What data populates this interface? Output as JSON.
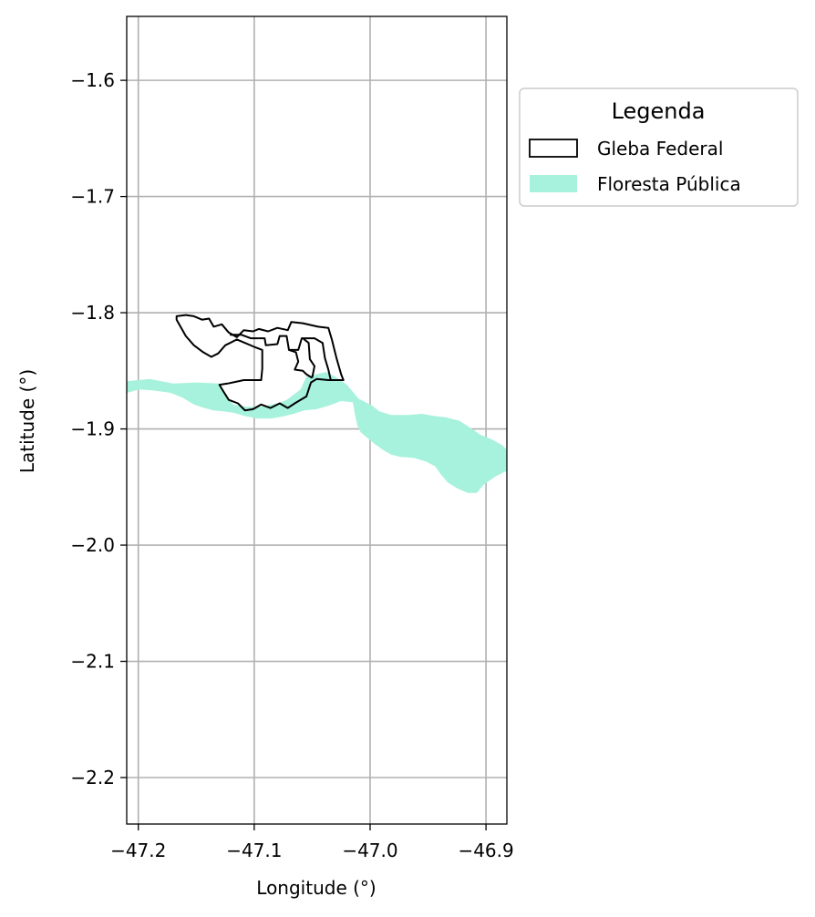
{
  "chart_data": {
    "type": "map",
    "title": "",
    "xlabel": "Longitude (°)",
    "ylabel": "Latitude (°)",
    "xlim": [
      -47.21,
      -46.882
    ],
    "ylim": [
      -2.24,
      -1.545
    ],
    "x_ticks": [
      -47.2,
      -47.1,
      -47.0,
      -46.9
    ],
    "x_tick_labels": [
      "−47.2",
      "−47.1",
      "−47.0",
      "−46.9"
    ],
    "y_ticks": [
      -1.6,
      -1.7,
      -1.8,
      -1.9,
      -2.0,
      -2.1,
      -2.2
    ],
    "y_tick_labels": [
      "−1.6",
      "−1.7",
      "−1.8",
      "−1.9",
      "−2.0",
      "−2.1",
      "−2.2"
    ],
    "grid": true,
    "legend": {
      "title": "Legenda",
      "placement": "outside-right-top",
      "entries": [
        {
          "label": "Gleba Federal",
          "style": "outline",
          "color": "#000000"
        },
        {
          "label": "Floresta Pública",
          "style": "fill",
          "color": "#a6f2dc"
        }
      ]
    },
    "colors": {
      "gleba_outline": "#000000",
      "floresta_fill": "#a6f2dc",
      "grid": "#b0b0b0"
    },
    "series": [
      {
        "name": "Gleba Federal",
        "geometry": "polygon",
        "coordinates": [
          [
            -47.167,
            -1.803
          ],
          [
            -47.159,
            -1.802
          ],
          [
            -47.152,
            -1.803
          ],
          [
            -47.145,
            -1.806
          ],
          [
            -47.139,
            -1.805
          ],
          [
            -47.135,
            -1.812
          ],
          [
            -47.128,
            -1.81
          ],
          [
            -47.122,
            -1.817
          ],
          [
            -47.115,
            -1.821
          ],
          [
            -47.109,
            -1.815
          ],
          [
            -47.101,
            -1.816
          ],
          [
            -47.096,
            -1.814
          ],
          [
            -47.088,
            -1.816
          ],
          [
            -47.08,
            -1.813
          ],
          [
            -47.071,
            -1.815
          ],
          [
            -47.068,
            -1.808
          ],
          [
            -47.058,
            -1.809
          ],
          [
            -47.045,
            -1.812
          ],
          [
            -47.036,
            -1.813
          ],
          [
            -47.033,
            -1.823
          ],
          [
            -47.029,
            -1.839
          ],
          [
            -47.025,
            -1.853
          ],
          [
            -47.023,
            -1.858
          ],
          [
            -47.029,
            -1.858
          ],
          [
            -47.036,
            -1.858
          ],
          [
            -47.046,
            -1.857
          ],
          [
            -47.051,
            -1.86
          ],
          [
            -47.055,
            -1.872
          ],
          [
            -47.065,
            -1.878
          ],
          [
            -47.071,
            -1.882
          ],
          [
            -47.078,
            -1.878
          ],
          [
            -47.086,
            -1.882
          ],
          [
            -47.094,
            -1.879
          ],
          [
            -47.101,
            -1.883
          ],
          [
            -47.108,
            -1.884
          ],
          [
            -47.114,
            -1.878
          ],
          [
            -47.122,
            -1.875
          ],
          [
            -47.127,
            -1.867
          ],
          [
            -47.13,
            -1.862
          ],
          [
            -47.123,
            -1.861
          ],
          [
            -47.109,
            -1.858
          ],
          [
            -47.094,
            -1.858
          ],
          [
            -47.093,
            -1.848
          ],
          [
            -47.093,
            -1.832
          ],
          [
            -47.101,
            -1.829
          ],
          [
            -47.108,
            -1.826
          ],
          [
            -47.115,
            -1.823
          ],
          [
            -47.125,
            -1.828
          ],
          [
            -47.131,
            -1.835
          ],
          [
            -47.137,
            -1.838
          ],
          [
            -47.144,
            -1.834
          ],
          [
            -47.152,
            -1.828
          ],
          [
            -47.159,
            -1.82
          ],
          [
            -47.163,
            -1.813
          ],
          [
            -47.167,
            -1.806
          ]
        ]
      },
      {
        "name": "Gleba Federal (inner boundaries)",
        "geometry": "multilinestring",
        "coordinates": [
          [
            [
              -47.121,
              -1.819
            ],
            [
              -47.111,
              -1.819
            ],
            [
              -47.103,
              -1.822
            ],
            [
              -47.096,
              -1.822
            ]
          ],
          [
            [
              -47.096,
              -1.822
            ],
            [
              -47.091,
              -1.822
            ],
            [
              -47.09,
              -1.828
            ],
            [
              -47.08,
              -1.827
            ],
            [
              -47.078,
              -1.82
            ],
            [
              -47.072,
              -1.82
            ],
            [
              -47.07,
              -1.832
            ],
            [
              -47.062,
              -1.832
            ],
            [
              -47.059,
              -1.822
            ],
            [
              -47.048,
              -1.822
            ],
            [
              -47.041,
              -1.826
            ],
            [
              -47.039,
              -1.839
            ],
            [
              -47.036,
              -1.849
            ],
            [
              -47.034,
              -1.858
            ]
          ],
          [
            [
              -47.07,
              -1.832
            ],
            [
              -47.064,
              -1.834
            ],
            [
              -47.062,
              -1.842
            ],
            [
              -47.065,
              -1.849
            ],
            [
              -47.058,
              -1.85
            ],
            [
              -47.055,
              -1.853
            ],
            [
              -47.05,
              -1.856
            ]
          ],
          [
            [
              -47.058,
              -1.822
            ],
            [
              -47.053,
              -1.826
            ],
            [
              -47.052,
              -1.84
            ],
            [
              -47.048,
              -1.846
            ],
            [
              -47.05,
              -1.856
            ]
          ]
        ]
      },
      {
        "name": "Floresta Pública",
        "geometry": "multipolygon",
        "coordinates": [
          [
            [
              -47.21,
              -1.859
            ],
            [
              -47.19,
              -1.857
            ],
            [
              -47.17,
              -1.861
            ],
            [
              -47.15,
              -1.86
            ],
            [
              -47.13,
              -1.861
            ],
            [
              -47.123,
              -1.873
            ],
            [
              -47.118,
              -1.879
            ],
            [
              -47.106,
              -1.881
            ],
            [
              -47.094,
              -1.881
            ],
            [
              -47.08,
              -1.878
            ],
            [
              -47.072,
              -1.875
            ],
            [
              -47.06,
              -1.866
            ],
            [
              -47.055,
              -1.855
            ],
            [
              -47.038,
              -1.851
            ],
            [
              -47.03,
              -1.855
            ],
            [
              -47.02,
              -1.862
            ],
            [
              -47.01,
              -1.874
            ],
            [
              -46.998,
              -1.88
            ],
            [
              -46.992,
              -1.885
            ],
            [
              -46.982,
              -1.888
            ],
            [
              -46.967,
              -1.888
            ],
            [
              -46.955,
              -1.887
            ],
            [
              -46.944,
              -1.889
            ],
            [
              -46.935,
              -1.89
            ],
            [
              -46.923,
              -1.893
            ],
            [
              -46.912,
              -1.9
            ],
            [
              -46.905,
              -1.905
            ],
            [
              -46.895,
              -1.909
            ],
            [
              -46.886,
              -1.914
            ],
            [
              -46.882,
              -1.918
            ],
            [
              -46.882,
              -1.936
            ],
            [
              -46.892,
              -1.941
            ],
            [
              -46.902,
              -1.948
            ],
            [
              -46.908,
              -1.955
            ],
            [
              -46.916,
              -1.955
            ],
            [
              -46.925,
              -1.951
            ],
            [
              -46.933,
              -1.946
            ],
            [
              -46.939,
              -1.939
            ],
            [
              -46.944,
              -1.932
            ],
            [
              -46.952,
              -1.928
            ],
            [
              -46.962,
              -1.925
            ],
            [
              -46.974,
              -1.924
            ],
            [
              -46.982,
              -1.922
            ],
            [
              -46.989,
              -1.918
            ],
            [
              -46.996,
              -1.913
            ],
            [
              -47.002,
              -1.908
            ],
            [
              -47.008,
              -1.903
            ],
            [
              -47.011,
              -1.897
            ],
            [
              -47.013,
              -1.888
            ],
            [
              -47.015,
              -1.877
            ],
            [
              -47.025,
              -1.876
            ],
            [
              -47.036,
              -1.88
            ],
            [
              -47.046,
              -1.883
            ],
            [
              -47.057,
              -1.884
            ],
            [
              -47.066,
              -1.887
            ],
            [
              -47.074,
              -1.889
            ],
            [
              -47.085,
              -1.891
            ],
            [
              -47.097,
              -1.891
            ],
            [
              -47.108,
              -1.889
            ],
            [
              -47.118,
              -1.886
            ],
            [
              -47.126,
              -1.885
            ],
            [
              -47.135,
              -1.884
            ],
            [
              -47.143,
              -1.882
            ],
            [
              -47.152,
              -1.879
            ],
            [
              -47.162,
              -1.873
            ],
            [
              -47.172,
              -1.869
            ],
            [
              -47.186,
              -1.867
            ],
            [
              -47.199,
              -1.866
            ],
            [
              -47.21,
              -1.869
            ]
          ]
        ]
      }
    ]
  }
}
